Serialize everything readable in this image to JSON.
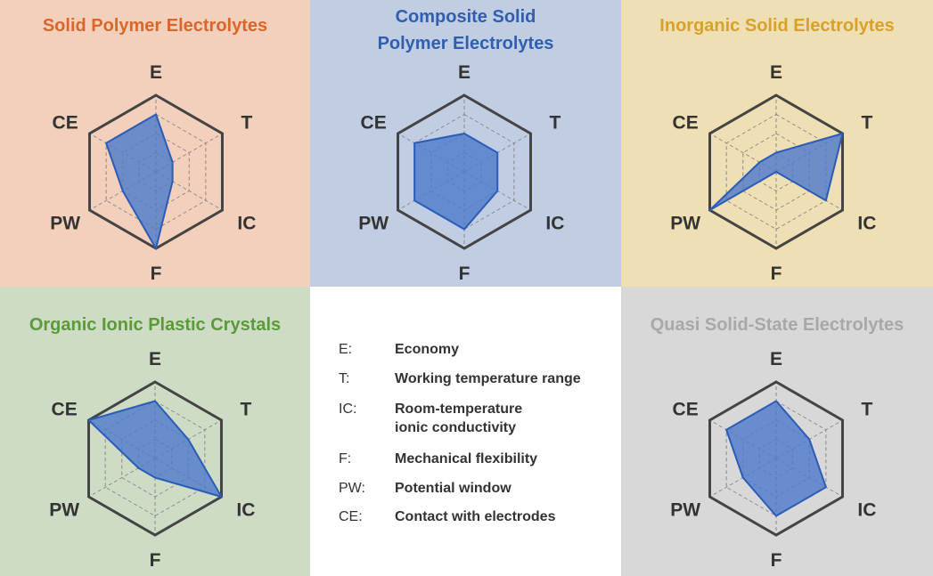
{
  "chart_data": {
    "type": "radar",
    "axes": [
      "E",
      "T",
      "IC",
      "F",
      "PW",
      "CE"
    ],
    "range": [
      0,
      4
    ],
    "grid": true,
    "fill_color": "#4f7bcb",
    "line_color": "#2a5cb8",
    "charts": [
      {
        "title": "Solid Polymer Electrolytes",
        "title_color": "#d9662b",
        "bg": "#f2d0bb",
        "values": {
          "E": 3,
          "T": 1,
          "IC": 1,
          "F": 4,
          "PW": 2,
          "CE": 3
        }
      },
      {
        "title": "Composite Solid Polymer Electrolytes",
        "title_lines": [
          "Composite Solid",
          "Polymer Electrolytes"
        ],
        "title_color": "#2f5fae",
        "bg": "#c0cde3",
        "values": {
          "E": 2,
          "T": 2,
          "IC": 2,
          "F": 3,
          "PW": 3,
          "CE": 3
        }
      },
      {
        "title": "Inorganic Solid Electrolytes",
        "title_color": "#d7a12b",
        "bg": "#efdfb4",
        "values": {
          "E": 1,
          "T": 4,
          "IC": 3,
          "F": 0,
          "PW": 4,
          "CE": 1
        }
      },
      {
        "title": "Organic Ionic Plastic Crystals",
        "title_color": "#5b9a3a",
        "bg": "#cfdcc5",
        "values": {
          "E": 3,
          "T": 2,
          "IC": 4,
          "F": 1,
          "PW": 1,
          "CE": 4
        }
      },
      {
        "title": "Quasi Solid-State Electrolytes",
        "title_color": "#a8a8a8",
        "bg": "#d8d8d8",
        "values": {
          "E": 3,
          "T": 2,
          "IC": 3,
          "F": 3,
          "PW": 2,
          "CE": 3
        }
      }
    ]
  },
  "legend": [
    {
      "key": "E:",
      "label": "Economy"
    },
    {
      "key": "T:",
      "label": "Working temperature range"
    },
    {
      "key": "IC:",
      "label": "Room-temperature ionic conductivity",
      "lines": [
        "Room-temperature",
        "ionic conductivity"
      ]
    },
    {
      "key": "F:",
      "label": "Mechanical flexibility"
    },
    {
      "key": "PW:",
      "label": "Potential window"
    },
    {
      "key": "CE:",
      "label": "Contact with electrodes"
    }
  ]
}
